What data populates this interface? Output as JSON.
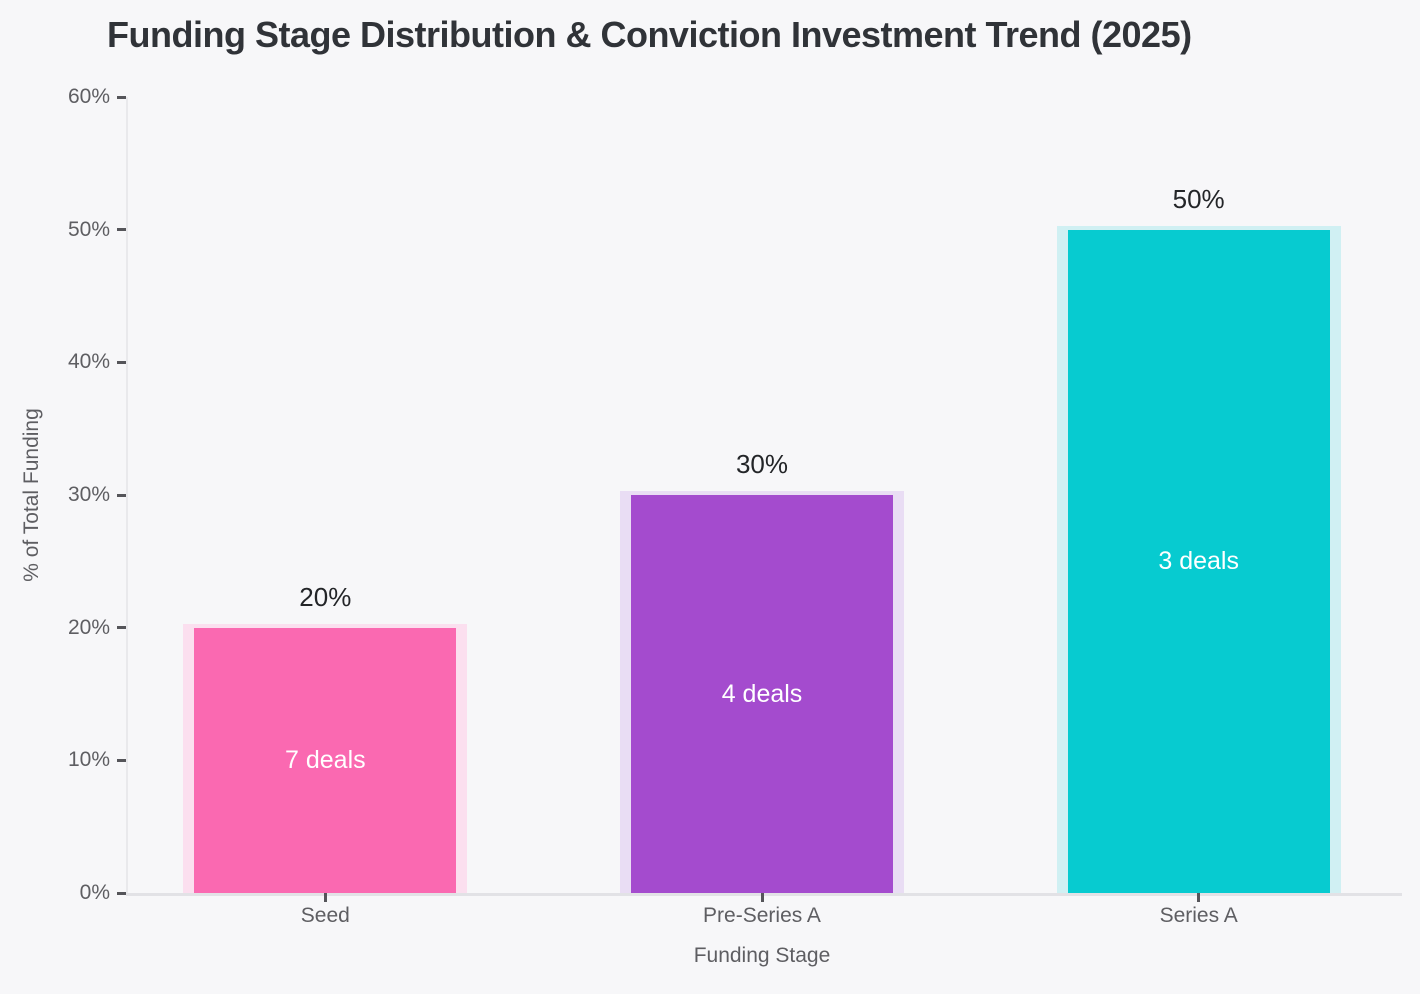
{
  "chart_data": {
    "type": "bar",
    "title": "Funding Stage Distribution & Conviction Investment Trend (2025)",
    "xlabel": "Funding Stage",
    "ylabel": "% of Total Funding",
    "categories": [
      "Seed",
      "Pre-Series A",
      "Series A"
    ],
    "values": [
      20,
      30,
      50
    ],
    "value_labels": [
      "20%",
      "30%",
      "50%"
    ],
    "deal_counts": [
      7,
      4,
      3
    ],
    "deal_labels": [
      "7 deals",
      "4 deals",
      "3 deals"
    ],
    "bar_colors": [
      "#FA69B1",
      "#A44BCE",
      "#07CBD0"
    ],
    "bar_halo_colors": [
      "#FBDFEF",
      "#E9DDF4",
      "#D0F0F3"
    ],
    "ylim": [
      0,
      60
    ],
    "ytick_step": 10,
    "yticks": [
      "0%",
      "10%",
      "20%",
      "30%",
      "40%",
      "50%",
      "60%"
    ],
    "grid": false,
    "legend": "none",
    "background_color": "#F7F7F9",
    "axis_text_color": "#5E5E62",
    "title_color": "#303338"
  }
}
